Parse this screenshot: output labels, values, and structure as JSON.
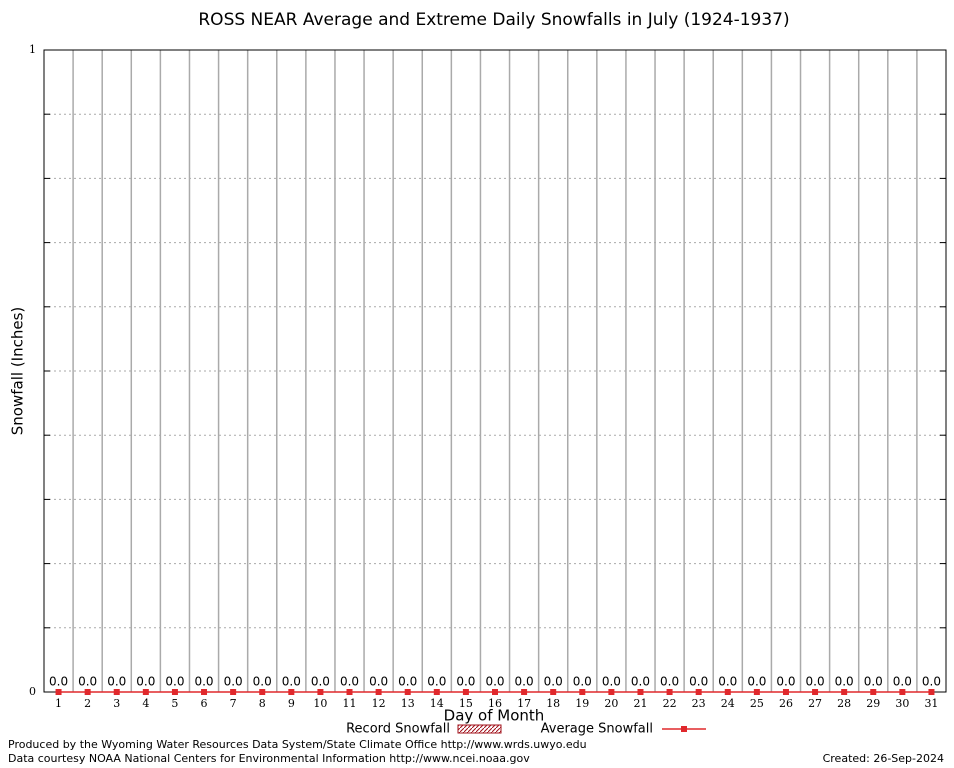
{
  "chart_data": {
    "type": "bar-line",
    "title": "ROSS NEAR Average and Extreme Daily Snowfalls in July (1924-1937)",
    "x_label": "Day of Month",
    "y_label": "Snowfall (Inches)",
    "categories": [
      1,
      2,
      3,
      4,
      5,
      6,
      7,
      8,
      9,
      10,
      11,
      12,
      13,
      14,
      15,
      16,
      17,
      18,
      19,
      20,
      21,
      22,
      23,
      24,
      25,
      26,
      27,
      28,
      29,
      30,
      31
    ],
    "series": [
      {
        "name": "Record Snowfall",
        "type": "bar",
        "color": "#a0101a",
        "values": [
          0,
          0,
          0,
          0,
          0,
          0,
          0,
          0,
          0,
          0,
          0,
          0,
          0,
          0,
          0,
          0,
          0,
          0,
          0,
          0,
          0,
          0,
          0,
          0,
          0,
          0,
          0,
          0,
          0,
          0,
          0
        ]
      },
      {
        "name": "Average Snowfall",
        "type": "line",
        "color": "#e0282c",
        "values": [
          0,
          0,
          0,
          0,
          0,
          0,
          0,
          0,
          0,
          0,
          0,
          0,
          0,
          0,
          0,
          0,
          0,
          0,
          0,
          0,
          0,
          0,
          0,
          0,
          0,
          0,
          0,
          0,
          0,
          0,
          0
        ],
        "value_labels": [
          "0.0",
          "0.0",
          "0.0",
          "0.0",
          "0.0",
          "0.0",
          "0.0",
          "0.0",
          "0.0",
          "0.0",
          "0.0",
          "0.0",
          "0.0",
          "0.0",
          "0.0",
          "0.0",
          "0.0",
          "0.0",
          "0.0",
          "0.0",
          "0.0",
          "0.0",
          "0.0",
          "0.0",
          "0.0",
          "0.0",
          "0.0",
          "0.0",
          "0.0",
          "0.0",
          "0.0"
        ]
      }
    ],
    "ylim": [
      0,
      1
    ],
    "yticks": [
      0,
      1
    ],
    "minor_yticks": [
      0.1,
      0.2,
      0.3,
      0.4,
      0.5,
      0.6,
      0.7,
      0.8,
      0.9
    ],
    "grid": true,
    "footer_left": [
      "Produced by the Wyoming Water Resources Data System/State Climate Office http://www.wrds.uwyo.edu",
      "Data courtesy NOAA National Centers for Environmental Information http://www.ncei.noaa.gov"
    ],
    "footer_right": "Created:  26-Sep-2024"
  }
}
